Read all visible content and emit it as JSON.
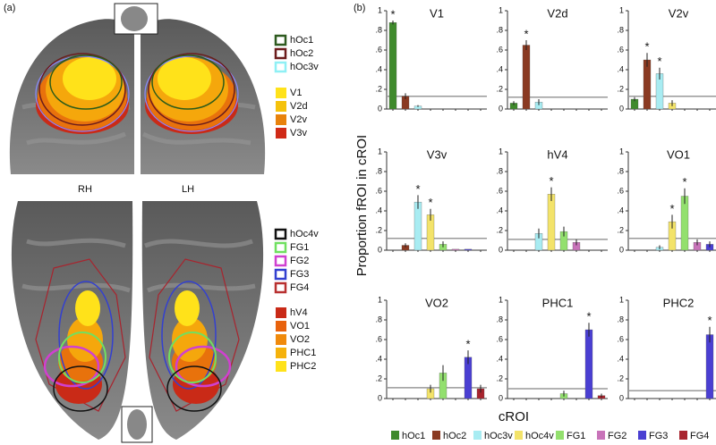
{
  "panel_a": {
    "label": "(a)",
    "outline_legend_top": [
      "hOc1",
      "hOc2",
      "hOc3v"
    ],
    "fill_legend_top": [
      "V1",
      "V2d",
      "V2v",
      "V3v"
    ],
    "hemispheres": [
      "RH",
      "LH"
    ],
    "outline_legend_bottom": [
      "hOc4v",
      "FG1",
      "FG2",
      "FG3",
      "FG4"
    ],
    "fill_legend_bottom": [
      "hV4",
      "VO1",
      "VO2",
      "PHC1",
      "PHC2"
    ]
  },
  "figure": {
    "label": "(b)",
    "y_label": "Proportion fROI in cROI",
    "x_label": "cROI",
    "legend": {
      "names": [
        "hOc1",
        "hOc2",
        "hOc3v",
        "hOc4v",
        "FG1",
        "FG2",
        "FG3",
        "FG4"
      ],
      "colors": [
        "#3f8a2c",
        "#8a3a22",
        "#a8ecf2",
        "#f3e36a",
        "#93e06e",
        "#c873b9",
        "#4a3fd2",
        "#a8242e"
      ]
    }
  },
  "chart_data": [
    {
      "type": "bar",
      "title": "V1",
      "values": [
        0.88,
        0.13,
        0.03,
        0,
        0,
        0,
        0,
        0
      ],
      "errors": [
        0.02,
        0.03,
        0.01,
        0,
        0,
        0,
        0,
        0
      ],
      "markers": [
        "*",
        null,
        null,
        null,
        null,
        null,
        null,
        null
      ],
      "reference_line": 0.13,
      "ylim": [
        0,
        1
      ],
      "yticks": [
        0,
        {
          "value": 0.2,
          "label": ".2"
        },
        {
          "value": 0.4,
          "label": ".4"
        },
        {
          "value": 0.6,
          "label": ".6"
        },
        {
          "value": 0.8,
          "label": ".8"
        },
        1
      ]
    },
    {
      "type": "bar",
      "title": "V2d",
      "values": [
        0.06,
        0.65,
        0.07,
        0,
        0,
        0,
        0,
        0
      ],
      "errors": [
        0.02,
        0.05,
        0.03,
        0,
        0,
        0,
        0,
        0
      ],
      "markers": [
        null,
        "*",
        null,
        null,
        null,
        null,
        null,
        null
      ],
      "reference_line": 0.12,
      "ylim": [
        0,
        1
      ],
      "yticks": [
        0,
        {
          "value": 0.2,
          "label": ".2"
        },
        {
          "value": 0.4,
          "label": ".4"
        },
        {
          "value": 0.6,
          "label": ".6"
        },
        {
          "value": 0.8,
          "label": ".8"
        },
        1
      ]
    },
    {
      "type": "bar",
      "title": "V2v",
      "values": [
        0.1,
        0.5,
        0.36,
        0.06,
        0,
        0,
        0,
        0
      ],
      "errors": [
        0.02,
        0.07,
        0.06,
        0.03,
        0,
        0,
        0,
        0
      ],
      "markers": [
        null,
        "*",
        "*",
        null,
        null,
        null,
        null,
        null
      ],
      "reference_line": 0.13,
      "ylim": [
        0,
        1
      ],
      "yticks": [
        0,
        {
          "value": 0.2,
          "label": ".2"
        },
        {
          "value": 0.4,
          "label": ".4"
        },
        {
          "value": 0.6,
          "label": ".6"
        },
        {
          "value": 0.8,
          "label": ".8"
        },
        1
      ]
    },
    {
      "type": "bar",
      "title": "V3v",
      "values": [
        0,
        0.05,
        0.49,
        0.36,
        0.06,
        0.01,
        0.01,
        0
      ],
      "errors": [
        0,
        0.02,
        0.07,
        0.06,
        0.03,
        0,
        0,
        0
      ],
      "markers": [
        null,
        null,
        "*",
        "*",
        null,
        null,
        null,
        null
      ],
      "reference_line": 0.12,
      "ylim": [
        0,
        1
      ],
      "yticks": [
        0,
        {
          "value": 0.2,
          "label": ".2"
        },
        {
          "value": 0.4,
          "label": ".4"
        },
        {
          "value": 0.6,
          "label": ".6"
        },
        {
          "value": 0.8,
          "label": ".8"
        },
        1
      ]
    },
    {
      "type": "bar",
      "title": "hV4",
      "values": [
        0,
        0,
        0.17,
        0.57,
        0.19,
        0.08,
        0,
        0
      ],
      "errors": [
        0,
        0,
        0.05,
        0.07,
        0.05,
        0.03,
        0,
        0
      ],
      "markers": [
        null,
        null,
        null,
        "*",
        null,
        null,
        null,
        null
      ],
      "reference_line": 0.11,
      "ylim": [
        0,
        1
      ],
      "yticks": [
        0,
        {
          "value": 0.2,
          "label": ".2"
        },
        {
          "value": 0.4,
          "label": ".4"
        },
        {
          "value": 0.6,
          "label": ".6"
        },
        {
          "value": 0.8,
          "label": ".8"
        },
        1
      ]
    },
    {
      "type": "bar",
      "title": "VO1",
      "values": [
        0,
        0,
        0.03,
        0.29,
        0.55,
        0.08,
        0.06,
        0.04
      ],
      "errors": [
        0,
        0,
        0.02,
        0.07,
        0.08,
        0.03,
        0.03,
        0.02
      ],
      "markers": [
        null,
        null,
        null,
        "*",
        "*",
        null,
        null,
        null
      ],
      "reference_line": 0.12,
      "ylim": [
        0,
        1
      ],
      "yticks": [
        0,
        {
          "value": 0.2,
          "label": ".2"
        },
        {
          "value": 0.4,
          "label": ".4"
        },
        {
          "value": 0.6,
          "label": ".6"
        },
        {
          "value": 0.8,
          "label": ".8"
        },
        1
      ]
    },
    {
      "type": "bar",
      "title": "VO2",
      "values": [
        0,
        0,
        0,
        0.1,
        0.26,
        0,
        0.42,
        0.1
      ],
      "errors": [
        0,
        0,
        0,
        0.04,
        0.08,
        0,
        0.07,
        0.04
      ],
      "markers": [
        null,
        null,
        null,
        null,
        null,
        null,
        "*",
        null
      ],
      "reference_line": 0.11,
      "ylim": [
        0,
        1
      ],
      "yticks": [
        0,
        {
          "value": 0.2,
          "label": ".2"
        },
        {
          "value": 0.4,
          "label": ".4"
        },
        {
          "value": 0.6,
          "label": ".6"
        },
        {
          "value": 0.8,
          "label": ".8"
        },
        1
      ]
    },
    {
      "type": "bar",
      "title": "PHC1",
      "values": [
        0,
        0,
        0,
        0,
        0.05,
        0,
        0.7,
        0.03
      ],
      "errors": [
        0,
        0,
        0,
        0,
        0.03,
        0,
        0.07,
        0.02
      ],
      "markers": [
        null,
        null,
        null,
        null,
        null,
        null,
        "*",
        null
      ],
      "reference_line": 0.1,
      "ylim": [
        0,
        1
      ],
      "yticks": [
        0,
        {
          "value": 0.2,
          "label": ".2"
        },
        {
          "value": 0.4,
          "label": ".4"
        },
        {
          "value": 0.6,
          "label": ".6"
        },
        {
          "value": 0.8,
          "label": ".8"
        },
        1
      ]
    },
    {
      "type": "bar",
      "title": "PHC2",
      "values": [
        0,
        0,
        0,
        0,
        0,
        0,
        0.65,
        0
      ],
      "errors": [
        0,
        0,
        0,
        0,
        0,
        0,
        0.08,
        0
      ],
      "markers": [
        null,
        null,
        null,
        null,
        null,
        null,
        "*",
        null
      ],
      "reference_line": 0.08,
      "ylim": [
        0,
        1
      ],
      "yticks": [
        0,
        {
          "value": 0.2,
          "label": ".2"
        },
        {
          "value": 0.4,
          "label": ".4"
        },
        {
          "value": 0.6,
          "label": ".6"
        },
        {
          "value": 0.8,
          "label": ".8"
        },
        1
      ]
    }
  ]
}
